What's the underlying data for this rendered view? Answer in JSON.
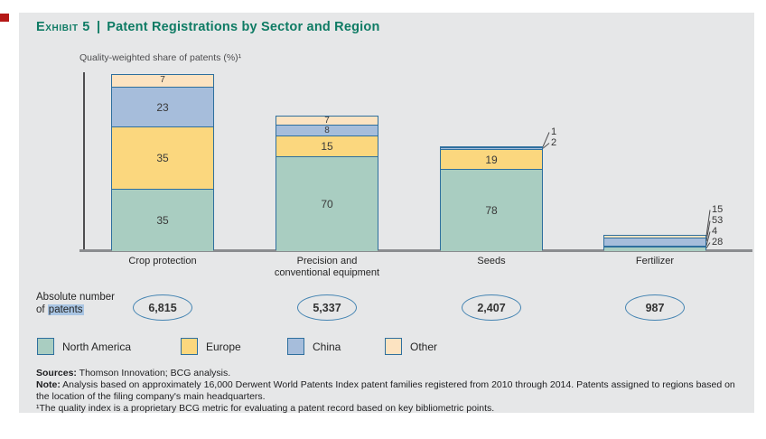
{
  "exhibit": {
    "label": "Exhibit 5",
    "separator": "|",
    "title": "Patent Registrations by Sector and Region"
  },
  "chart_data": {
    "type": "bar",
    "stacked": true,
    "subtitle": "Quality-weighted share of patents (%)¹",
    "categories": [
      "Crop protection",
      "Precision and\nconventional equipment",
      "Seeds",
      "Fertilizer"
    ],
    "series": [
      {
        "name": "North America",
        "color": "#a9cdc1",
        "values": [
          35,
          70,
          78,
          28
        ]
      },
      {
        "name": "Europe",
        "color": "#fbd77e",
        "values": [
          35,
          15,
          19,
          4
        ]
      },
      {
        "name": "China",
        "color": "#a6bddb",
        "values": [
          23,
          8,
          2,
          53
        ]
      },
      {
        "name": "Other",
        "color": "#fce3c1",
        "values": [
          7,
          7,
          1,
          15
        ]
      }
    ],
    "stack_order": "bottom to top: North America, Europe, China, Other",
    "ylim_percent": [
      0,
      100
    ],
    "grid": false,
    "legend_position": "bottom",
    "absolute_numbers": {
      "label_line1": "Absolute number",
      "label_line2_prefix": "of ",
      "label_line2_highlighted": "patents",
      "values": [
        "6,815",
        "5,337",
        "2,407",
        "987"
      ]
    }
  },
  "legend": {
    "items": [
      {
        "label": "North America",
        "color": "#a9cdc1"
      },
      {
        "label": "Europe",
        "color": "#fbd77e"
      },
      {
        "label": "China",
        "color": "#a6bddb"
      },
      {
        "label": "Other",
        "color": "#fce3c1"
      }
    ]
  },
  "footer": {
    "sources_label": "Sources:",
    "sources_text": " Thomson Innovation; BCG analysis.",
    "note_label": "Note:",
    "note_text": " Analysis based on approximately 16,000 Derwent World Patents Index patent families registered from 2010 through 2014. Patents assigned to regions based on the location of the filing company's main headquarters.",
    "footnote": "¹The quality index is a proprietary BCG metric for evaluating a patent record based on key bibliometric points."
  },
  "colors": {
    "title_accent": "#0e7b64",
    "bar_border": "#2e6f9e",
    "panel_background": "#e6e7e8",
    "axis": "#4d4d4f",
    "baseline": "#8a8c8f",
    "ellipse_border": "#4484b2",
    "patents_highlight": "#a9c5e3",
    "edge_marker_red": "#b51917"
  }
}
